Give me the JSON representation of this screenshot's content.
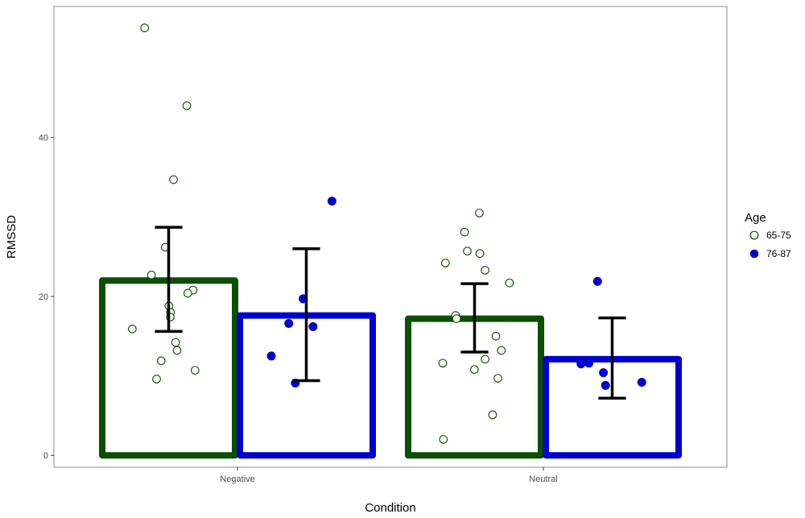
{
  "chart_data": {
    "type": "bar",
    "xlabel": "Condition",
    "ylabel": "RMSSD",
    "categories": [
      "Negative",
      "Neutral"
    ],
    "ylim": [
      -1.5,
      56.5
    ],
    "yticks": [
      0,
      20,
      40
    ],
    "grid": false,
    "legend": {
      "title": "Age",
      "position": "right"
    },
    "series": [
      {
        "name": "65-75",
        "color": "#0b4f00",
        "marker": "open-circle",
        "values": [
          22.0,
          17.2
        ],
        "error_low": [
          15.6,
          13.0
        ],
        "error_high": [
          28.7,
          21.6
        ],
        "points": [
          [
            53.8,
            44.0,
            34.7,
            26.2,
            22.7,
            20.8,
            20.4,
            18.8,
            18.0,
            17.4,
            15.9,
            14.2,
            13.2,
            11.9,
            10.7,
            9.6
          ],
          [
            30.5,
            28.1,
            25.7,
            25.4,
            24.2,
            23.3,
            21.7,
            17.6,
            17.2,
            15.0,
            13.2,
            12.1,
            11.6,
            10.8,
            9.7,
            5.1,
            2.0
          ]
        ]
      },
      {
        "name": "76-87",
        "color": "#0000cc",
        "marker": "filled-circle",
        "values": [
          17.6,
          12.1
        ],
        "error_low": [
          9.4,
          7.2
        ],
        "error_high": [
          26.0,
          17.3
        ],
        "points": [
          [
            32.0,
            19.7,
            16.6,
            16.2,
            12.5,
            9.1
          ],
          [
            21.9,
            11.6,
            11.5,
            10.4,
            9.2,
            8.8
          ]
        ]
      }
    ]
  }
}
